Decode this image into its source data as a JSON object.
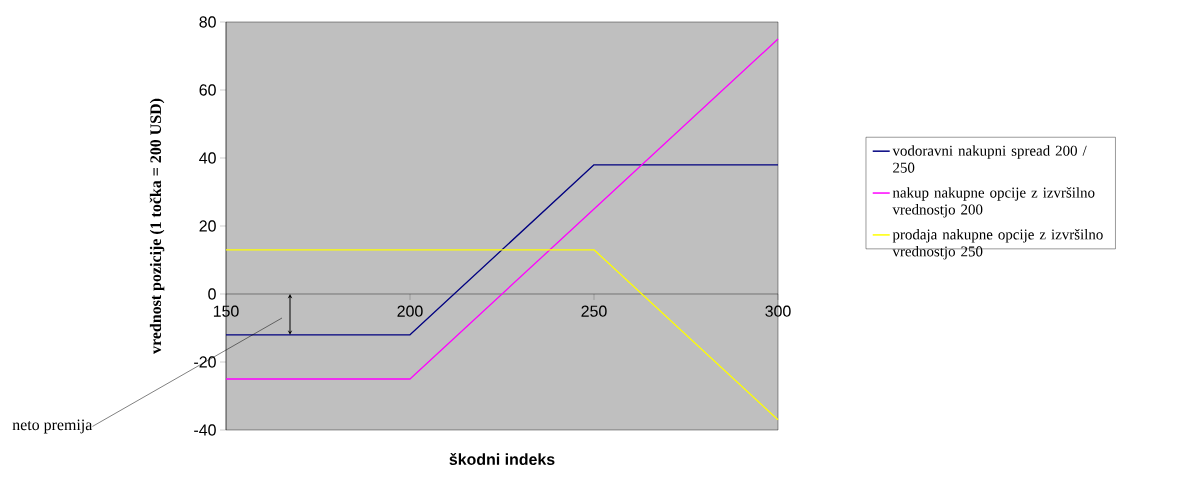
{
  "chart_data": {
    "type": "line",
    "xlabel": "škodni indeks",
    "ylabel": "vrednost pozicije (1 točka = 200 USD)",
    "x": [
      150,
      200,
      250,
      300
    ],
    "series": [
      {
        "name": "vodoravni nakupni spread 200 / 250",
        "color": "#000080",
        "values": [
          -12,
          -12,
          38,
          38
        ]
      },
      {
        "name": "nakup nakupne opcije z izvršilno vrednostjo 200",
        "color": "#ff00ff",
        "values": [
          -25,
          -25,
          25,
          75
        ]
      },
      {
        "name": "prodaja nakupne opcije z izvršilno vrednostjo 250",
        "color": "#ffff00",
        "values": [
          13,
          13,
          13,
          -37
        ]
      }
    ],
    "xlim": [
      150,
      300
    ],
    "ylim": [
      -40,
      80
    ],
    "xticks": [
      150,
      200,
      250,
      300
    ],
    "yticks": [
      -40,
      -20,
      0,
      20,
      40,
      60,
      80
    ],
    "grid": false,
    "legend": "right",
    "marker": "none",
    "line_style": "solid",
    "annotations": [
      "neto premija"
    ]
  }
}
